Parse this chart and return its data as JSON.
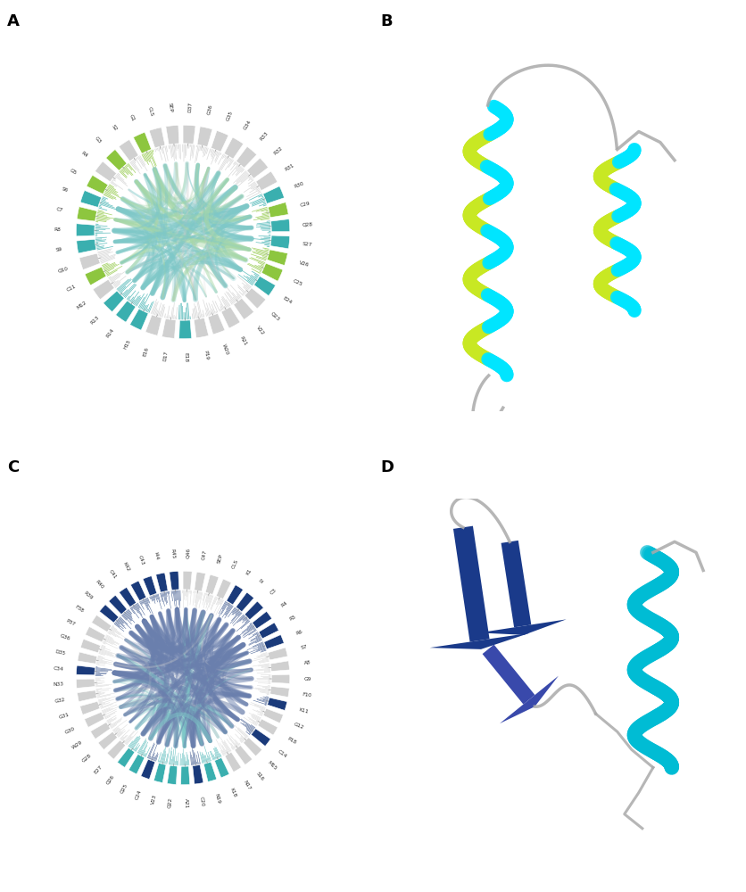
{
  "panel_labels": [
    "A",
    "B",
    "C",
    "D"
  ],
  "panel_label_fontsize": 13,
  "background_color": "#ffffff",
  "chord_A_labels": [
    "D37",
    "G36",
    "G35",
    "G34",
    "R33",
    "R32",
    "R31",
    "R30",
    "C29",
    "Q28",
    "S27",
    "V26",
    "C25",
    "E24",
    "Q23",
    "V22",
    "R21",
    "W20",
    "P19",
    "E18",
    "D17",
    "E16",
    "H15",
    "R14",
    "R13",
    "M12",
    "C11",
    "Q10",
    "S9",
    "R8",
    "C7",
    "S6",
    "G5",
    "R4",
    "G3",
    "S2",
    "G1",
    "CLS",
    "SEP"
  ],
  "chord_A_teal": [
    "R30",
    "Q28",
    "S27",
    "E24",
    "R8",
    "S9",
    "S6",
    "R14",
    "H15",
    "E18",
    "R13"
  ],
  "chord_A_green": [
    "C29",
    "V26",
    "C25",
    "C7",
    "C11",
    "G1",
    "G3",
    "G5"
  ],
  "chord_A_outer": "#7bc043",
  "chord_A_teal_color": "#3aafaf",
  "chord_A_green_color": "#8dc63f",
  "chord_A_ribbon1": "#a8d8a8",
  "chord_A_ribbon2": "#7ec8c8",
  "chord_C_labels": [
    "Q46",
    "C47",
    "SEP",
    "CLS",
    "K1",
    "I2",
    "C3",
    "R4",
    "R5",
    "R6",
    "S7",
    "A8",
    "G9",
    "F10",
    "K11",
    "G12",
    "P18",
    "C14",
    "M15",
    "S16",
    "N17",
    "K18",
    "N19",
    "C20",
    "A21",
    "Q22",
    "V23",
    "C24",
    "Q25",
    "Q26",
    "E27",
    "G28",
    "W29",
    "G30",
    "G31",
    "G32",
    "N33",
    "C34",
    "D35",
    "G36",
    "P37",
    "F38",
    "R39",
    "R40",
    "C41",
    "K42",
    "C43",
    "I44",
    "R45"
  ],
  "chord_C_navy": [
    "K1",
    "R4",
    "R5",
    "R6",
    "K11",
    "R39",
    "R40",
    "C41",
    "K42",
    "C43",
    "R45",
    "C3",
    "C14",
    "C20",
    "C24",
    "C34",
    "I2",
    "I44"
  ],
  "chord_C_teal": [
    "K18",
    "N19",
    "C20",
    "A21",
    "Q22",
    "V23",
    "C24",
    "Q25",
    "Q26"
  ],
  "chord_C_outer": "#1a3a7a",
  "chord_C_navy_color": "#1a3a7a",
  "chord_C_teal_color": "#3aafaf",
  "chord_C_ribbon1": "#6a7fad",
  "chord_C_ribbon2": "#7ec8c8",
  "protein_cyan": "#00e5ff",
  "protein_ygreen": "#c8e823",
  "protein_navy": "#1a3a8a",
  "protein_teal": "#00bcd4",
  "protein_gray": "#aaaaaa"
}
